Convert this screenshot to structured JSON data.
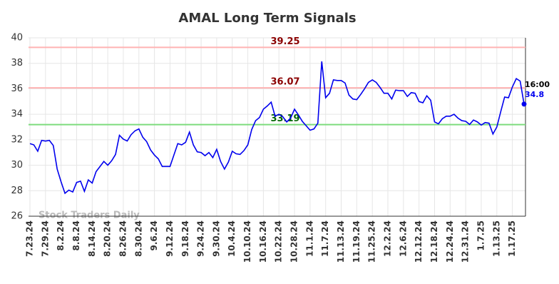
{
  "chart_data": {
    "type": "line",
    "title": "AMAL Long Term Signals",
    "watermark": "Stock Traders Daily",
    "categories": [
      "7.23.24",
      null,
      null,
      null,
      "7.29.24",
      null,
      null,
      null,
      "8.2.24",
      null,
      null,
      null,
      "8.8.24",
      null,
      null,
      null,
      "8.14.24",
      null,
      null,
      null,
      "8.20.24",
      null,
      null,
      null,
      "8.26.24",
      null,
      null,
      null,
      "8.30.24",
      null,
      null,
      null,
      "9.6.24",
      null,
      null,
      null,
      "9.12.24",
      null,
      null,
      null,
      "9.18.24",
      null,
      null,
      null,
      "9.24.24",
      null,
      null,
      null,
      "9.30.24",
      null,
      null,
      null,
      "10.4.24",
      null,
      null,
      null,
      "10.10.24",
      null,
      null,
      null,
      "10.16.24",
      null,
      null,
      null,
      "10.22.24",
      null,
      null,
      null,
      "10.28.24",
      null,
      null,
      null,
      "11.1.24",
      null,
      null,
      null,
      "11.7.24",
      null,
      null,
      null,
      "11.13.24",
      null,
      null,
      null,
      "11.19.24",
      null,
      null,
      null,
      "11.25.24",
      null,
      null,
      null,
      "12.2.24",
      null,
      null,
      null,
      "12.6.24",
      null,
      null,
      null,
      "12.12.24",
      null,
      null,
      null,
      "12.18.24",
      null,
      null,
      null,
      "12.24.24",
      null,
      null,
      null,
      "12.31.24",
      null,
      null,
      null,
      "1.7.25",
      null,
      null,
      null,
      "1.13.25",
      null,
      null,
      null,
      "1.17.25",
      null,
      null,
      null
    ],
    "series": [
      {
        "name": "AMAL",
        "color": "#0000ee",
        "values": [
          31.7,
          31.6,
          31.1,
          31.95,
          31.9,
          31.95,
          31.55,
          29.7,
          28.7,
          27.8,
          28.05,
          27.9,
          28.65,
          28.75,
          27.95,
          28.85,
          28.6,
          29.5,
          29.9,
          30.3,
          30.0,
          30.35,
          30.85,
          32.35,
          32.05,
          31.9,
          32.4,
          32.7,
          32.85,
          32.2,
          31.85,
          31.2,
          30.8,
          30.5,
          29.9,
          29.9,
          29.9,
          30.8,
          31.7,
          31.6,
          31.8,
          32.6,
          31.6,
          31.05,
          31.0,
          30.75,
          31.0,
          30.6,
          31.25,
          30.3,
          29.7,
          30.25,
          31.1,
          30.9,
          30.85,
          31.15,
          31.6,
          32.8,
          33.5,
          33.75,
          34.4,
          34.65,
          34.95,
          33.85,
          34.0,
          33.8,
          33.4,
          33.7,
          34.4,
          33.95,
          33.45,
          33.1,
          32.75,
          32.85,
          33.3,
          38.15,
          35.3,
          35.65,
          36.7,
          36.65,
          36.65,
          36.45,
          35.5,
          35.2,
          35.15,
          35.55,
          36.0,
          36.5,
          36.7,
          36.5,
          36.1,
          35.65,
          35.65,
          35.2,
          35.9,
          35.85,
          35.85,
          35.4,
          35.7,
          35.65,
          35.0,
          34.9,
          35.45,
          35.1,
          33.4,
          33.25,
          33.65,
          33.85,
          33.85,
          34.0,
          33.7,
          33.5,
          33.45,
          33.2,
          33.55,
          33.4,
          33.15,
          33.35,
          33.3,
          32.45,
          33.0,
          34.2,
          35.35,
          35.3,
          36.15,
          36.8,
          36.6,
          34.8
        ]
      }
    ],
    "last_label": "16:00",
    "levels": [
      {
        "value": 39.25,
        "color": "#ffb3b3",
        "label_color": "#8b0000"
      },
      {
        "value": 36.07,
        "color": "#ffb3b3",
        "label_color": "#8b0000"
      },
      {
        "value": 33.19,
        "color": "#7ddc7d",
        "label_color": "#006400"
      }
    ],
    "ylim": [
      26,
      40
    ],
    "yticks": [
      26,
      28,
      30,
      32,
      34,
      36,
      38,
      40
    ],
    "grid": true
  }
}
